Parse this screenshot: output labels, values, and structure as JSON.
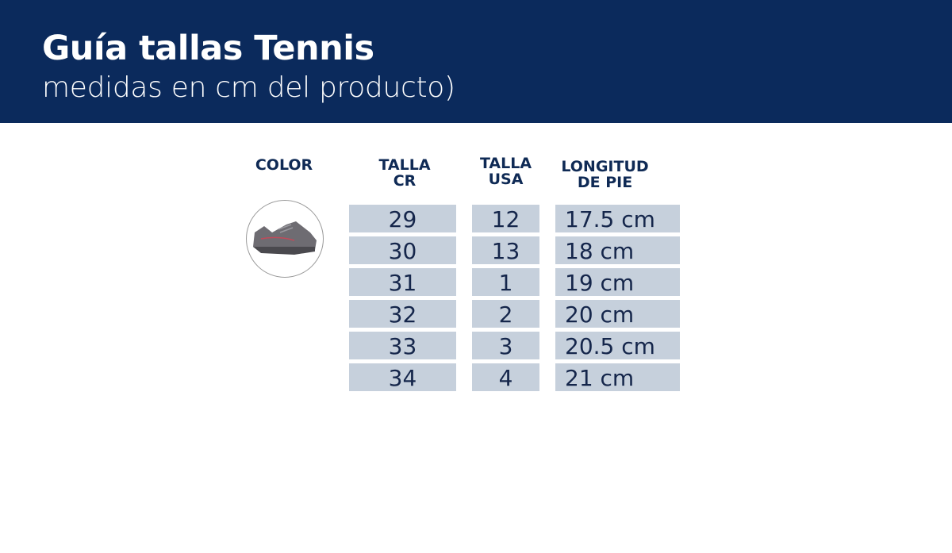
{
  "header": {
    "title": "Guía tallas Tennis",
    "subtitle": "medidas en cm del producto)",
    "background": "#0b2a5c"
  },
  "table": {
    "columns": [
      "COLOR",
      "TALLA CR",
      "TALLA USA",
      "LONGITUD DE PIE"
    ],
    "columns_lines": [
      [
        "COLOR"
      ],
      [
        "TALLA",
        "CR"
      ],
      [
        "TALLA",
        "USA"
      ],
      [
        "LONGITUD",
        "DE PIE"
      ]
    ],
    "color_swatch": "gray-sneaker-image",
    "rows": [
      {
        "cr": "29",
        "usa": "12",
        "length": "17.5 cm"
      },
      {
        "cr": "30",
        "usa": "13",
        "length": "18 cm"
      },
      {
        "cr": "31",
        "usa": "1",
        "length": "19 cm"
      },
      {
        "cr": "32",
        "usa": "2",
        "length": "20 cm"
      },
      {
        "cr": "33",
        "usa": "3",
        "length": "20.5 cm"
      },
      {
        "cr": "34",
        "usa": "4",
        "length": "21 cm"
      }
    ],
    "cell_color": "#c6d0dc"
  }
}
